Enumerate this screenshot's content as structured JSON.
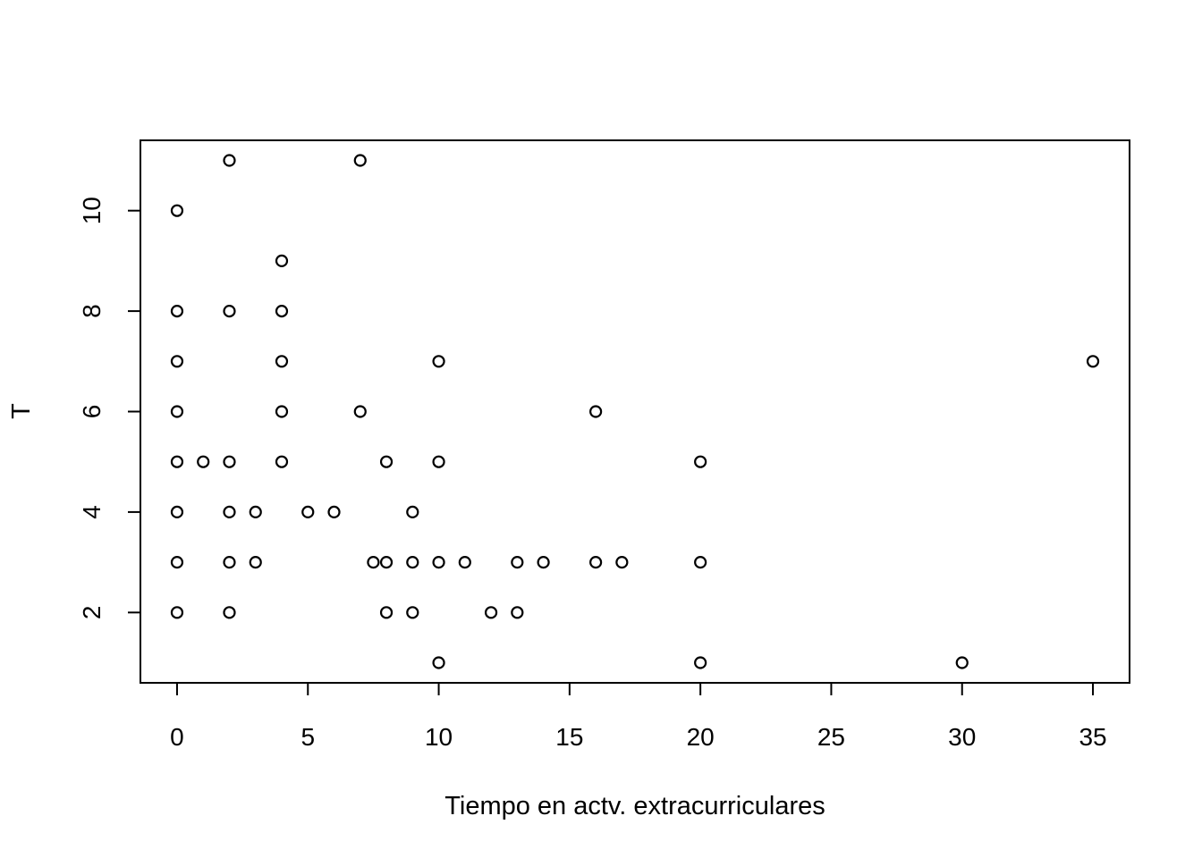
{
  "chart_data": {
    "type": "scatter",
    "title": "",
    "xlabel": "Tiempo en actv. extracurriculares",
    "ylabel": "T",
    "xlim": [
      -1.4,
      36.4
    ],
    "ylim": [
      0.6,
      11.4
    ],
    "xticks": [
      0,
      5,
      10,
      15,
      20,
      25,
      30,
      35
    ],
    "yticks": [
      2,
      4,
      6,
      8,
      10
    ],
    "grid": false,
    "points": [
      {
        "x": 0,
        "y": 10
      },
      {
        "x": 0,
        "y": 8
      },
      {
        "x": 0,
        "y": 7
      },
      {
        "x": 0,
        "y": 6
      },
      {
        "x": 0,
        "y": 5
      },
      {
        "x": 0,
        "y": 4
      },
      {
        "x": 0,
        "y": 3
      },
      {
        "x": 0,
        "y": 2
      },
      {
        "x": 1,
        "y": 5
      },
      {
        "x": 2,
        "y": 11
      },
      {
        "x": 2,
        "y": 8
      },
      {
        "x": 2,
        "y": 5
      },
      {
        "x": 2,
        "y": 4
      },
      {
        "x": 2,
        "y": 3
      },
      {
        "x": 2,
        "y": 2
      },
      {
        "x": 3,
        "y": 4
      },
      {
        "x": 3,
        "y": 3
      },
      {
        "x": 4,
        "y": 9
      },
      {
        "x": 4,
        "y": 8
      },
      {
        "x": 4,
        "y": 7
      },
      {
        "x": 4,
        "y": 6
      },
      {
        "x": 4,
        "y": 5
      },
      {
        "x": 5,
        "y": 4
      },
      {
        "x": 6,
        "y": 4
      },
      {
        "x": 7,
        "y": 11
      },
      {
        "x": 7,
        "y": 6
      },
      {
        "x": 7.5,
        "y": 3
      },
      {
        "x": 8,
        "y": 5
      },
      {
        "x": 8,
        "y": 3
      },
      {
        "x": 8,
        "y": 2
      },
      {
        "x": 9,
        "y": 4
      },
      {
        "x": 9,
        "y": 3
      },
      {
        "x": 9,
        "y": 2
      },
      {
        "x": 10,
        "y": 7
      },
      {
        "x": 10,
        "y": 5
      },
      {
        "x": 10,
        "y": 3
      },
      {
        "x": 10,
        "y": 1
      },
      {
        "x": 11,
        "y": 3
      },
      {
        "x": 12,
        "y": 2
      },
      {
        "x": 13,
        "y": 3
      },
      {
        "x": 13,
        "y": 2
      },
      {
        "x": 14,
        "y": 3
      },
      {
        "x": 16,
        "y": 6
      },
      {
        "x": 16,
        "y": 3
      },
      {
        "x": 17,
        "y": 3
      },
      {
        "x": 20,
        "y": 5
      },
      {
        "x": 20,
        "y": 3
      },
      {
        "x": 20,
        "y": 1
      },
      {
        "x": 30,
        "y": 1
      },
      {
        "x": 35,
        "y": 7
      }
    ]
  }
}
